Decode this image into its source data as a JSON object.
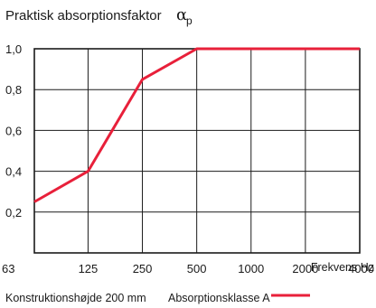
{
  "chart_data": {
    "type": "line",
    "title": "Praktisk absorptionsfaktor",
    "title_symbol": "α",
    "title_symbol_subscript": "p",
    "xlabel": "Frekvens Hz",
    "ylabel": "",
    "x_scale": "log2",
    "categories": [
      "63",
      "125",
      "250",
      "500",
      "1000",
      "2000",
      "4000"
    ],
    "x": [
      63,
      125,
      250,
      500,
      1000,
      2000,
      4000
    ],
    "y_ticks": [
      "1,0",
      "0,8",
      "0,6",
      "0,4",
      "0,2"
    ],
    "y_tick_values": [
      1.0,
      0.8,
      0.6,
      0.4,
      0.2
    ],
    "ylim": [
      0,
      1.0
    ],
    "grid": true,
    "legend_position": "bottom",
    "series": [
      {
        "name": "Absorptionsklasse A",
        "color": "#e8203a",
        "x": [
          63,
          125,
          250,
          500,
          1000,
          2000,
          4000
        ],
        "values": [
          0.25,
          0.4,
          0.85,
          1.0,
          1.0,
          1.0,
          1.0
        ]
      }
    ],
    "caption_left": "Konstruktionshøjde 200 mm"
  }
}
